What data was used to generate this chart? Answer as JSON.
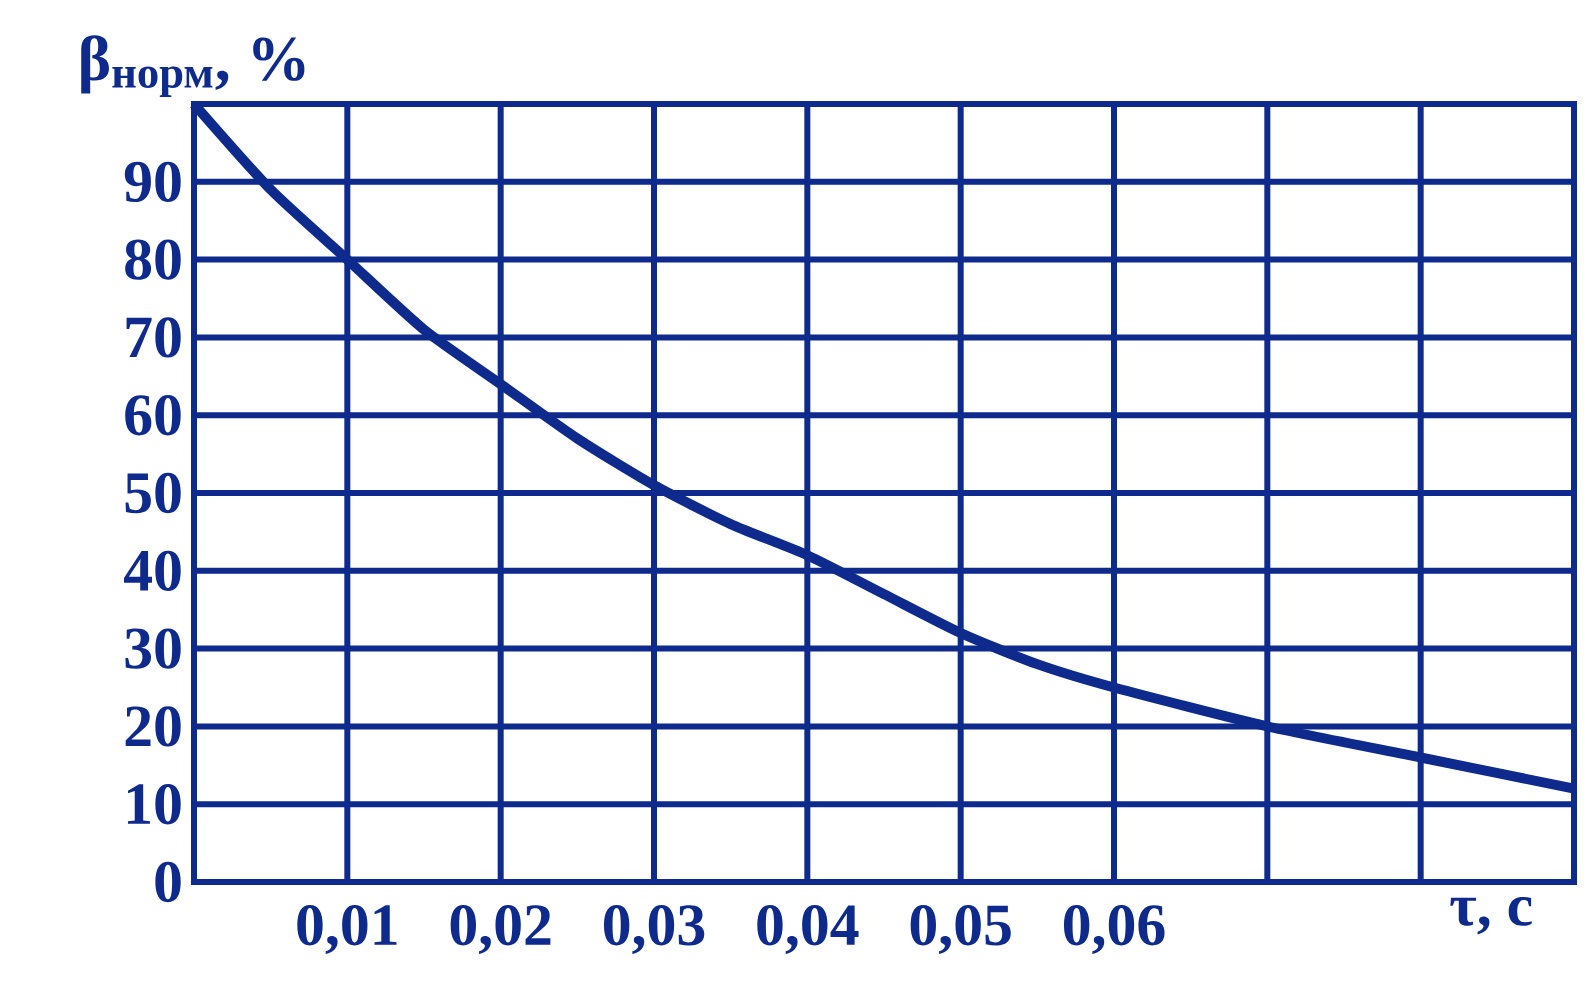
{
  "chart_data": {
    "type": "line",
    "xlabel": "τ, с",
    "ylabel": "β$_{норм}$, %",
    "x": [
      0,
      0.005,
      0.01,
      0.015,
      0.02,
      0.025,
      0.03,
      0.035,
      0.04,
      0.045,
      0.05,
      0.055,
      0.06,
      0.07,
      0.08,
      0.09
    ],
    "series": [
      {
        "color": "#0d2a8c",
        "values": [
          100,
          89,
          80,
          71,
          64,
          57,
          51,
          46,
          42,
          37,
          32,
          28,
          25,
          20,
          16,
          12
        ]
      }
    ],
    "xlim": [
      0,
      0.09
    ],
    "ylim": [
      0,
      100
    ],
    "xticks": [
      {
        "value": 0.01,
        "label": "0,01"
      },
      {
        "value": 0.02,
        "label": "0,02"
      },
      {
        "value": 0.03,
        "label": "0,03"
      },
      {
        "value": 0.04,
        "label": "0,04"
      },
      {
        "value": 0.05,
        "label": "0,05"
      },
      {
        "value": 0.06,
        "label": "0,06"
      },
      {
        "value": 0.07,
        "label": null
      },
      {
        "value": 0.08,
        "label": null
      }
    ],
    "yticks": [
      0,
      10,
      20,
      30,
      40,
      50,
      60,
      70,
      80,
      90
    ],
    "grid": true
  }
}
